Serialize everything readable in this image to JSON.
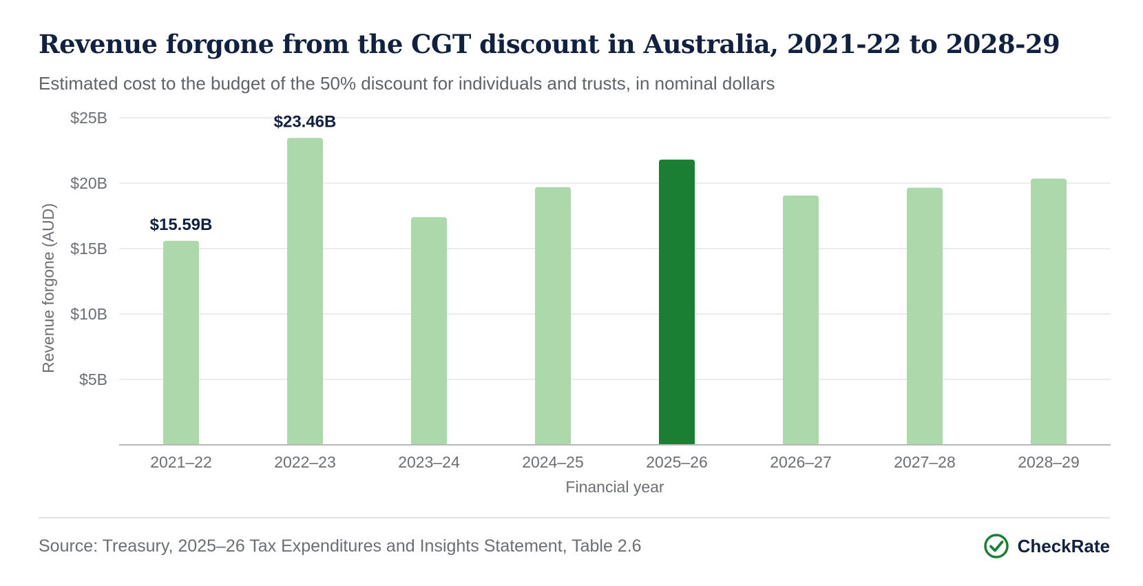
{
  "header": {
    "title": "Revenue forgone from the CGT discount in Australia, 2021-22 to 2028-29",
    "subtitle": "Estimated cost to the budget of the 50% discount for individuals and trusts, in nominal dollars"
  },
  "chart_data": {
    "type": "bar",
    "categories": [
      "2021–22",
      "2022–23",
      "2023–24",
      "2024–25",
      "2025–26",
      "2026–27",
      "2027–28",
      "2028–29"
    ],
    "values": [
      15.59,
      23.46,
      17.4,
      19.7,
      21.8,
      19.05,
      19.65,
      20.35
    ],
    "value_labels": [
      "$15.59B",
      "$23.46B",
      "",
      "",
      "",
      "",
      "",
      ""
    ],
    "highlight_index": 4,
    "xlabel": "Financial year",
    "ylabel": "Revenue forgone (AUD)",
    "ylim": [
      0,
      25
    ],
    "yticks": [
      5,
      10,
      15,
      20,
      25
    ],
    "ytick_labels": [
      "$5B",
      "$10B",
      "$15B",
      "$20B",
      "$25B"
    ],
    "grid": true,
    "colors": {
      "bar": "#acd8ac",
      "highlight": "#1a7f33",
      "grid": "#e6e6e6",
      "axis": "#b8b8b8"
    }
  },
  "footer": {
    "source": "Source: Treasury, 2025–26 Tax Expenditures and Insights Statement, Table 2.6",
    "brand_name": "CheckRate",
    "brand_icon": "check-circle-icon",
    "brand_color": "#1a7f33"
  }
}
